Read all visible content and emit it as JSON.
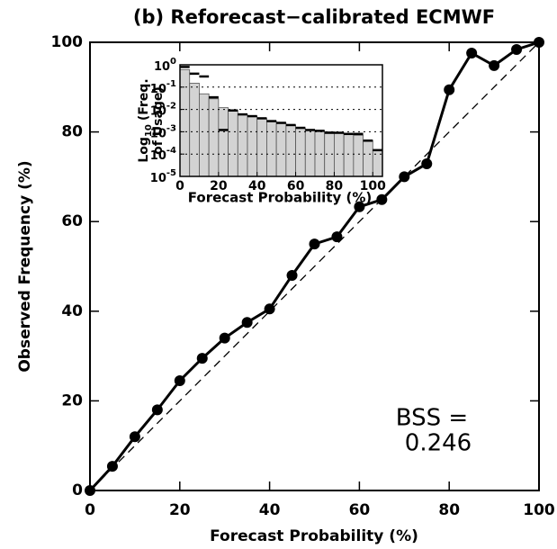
{
  "chart_data": [
    {
      "type": "line",
      "title": "(b) Reforecast−calibrated ECMWF",
      "xlabel": "Forecast Probability (%)",
      "ylabel": "Observed Frequency (%)",
      "x": [
        0,
        5,
        10,
        15,
        20,
        25,
        30,
        35,
        40,
        45,
        50,
        55,
        60,
        65,
        70,
        75,
        80,
        85,
        90,
        95,
        100
      ],
      "values": [
        0,
        5.4,
        12,
        18,
        24.5,
        29.5,
        34,
        37.5,
        40.5,
        48,
        55,
        56.6,
        63.3,
        64.9,
        70,
        72.9,
        89.4,
        97.6,
        94.8,
        98.4,
        100
      ],
      "color": "#000000",
      "xlim": [
        0,
        100
      ],
      "ylim": [
        0,
        100
      ],
      "xticks": [
        0,
        20,
        40,
        60,
        80,
        100
      ],
      "yticks": [
        0,
        20,
        40,
        60,
        80,
        100
      ],
      "annotations": [
        "BSS =",
        "0.246"
      ]
    },
    {
      "type": "histogram",
      "xlabel": "Forecast Probability (%)",
      "ylabel": {
        "base": "Log",
        "sub": "10",
        "rest": "(Freq.",
        "line2": "of Usage)"
      },
      "bins": [
        0,
        5,
        10,
        15,
        20,
        25,
        30,
        35,
        40,
        45,
        50,
        55,
        60,
        65,
        70,
        75,
        80,
        85,
        90,
        95,
        100,
        105
      ],
      "series": [
        {
          "color": "#d3d3d3",
          "values": [
            0.6,
            0.15,
            0.05,
            0.03,
            0.012,
            0.009,
            0.006,
            0.005,
            0.004,
            0.003,
            0.0025,
            0.002,
            0.0015,
            0.0012,
            0.0011,
            0.001,
            0.0009,
            0.0008,
            0.0007,
            0.0004,
            0.00015
          ]
        },
        {
          "color": "#000000",
          "values": [
            0.8,
            0.4,
            0.3,
            0.035,
            0.0012,
            0.009,
            0.006,
            0.005,
            0.004,
            0.003,
            0.0025,
            0.002,
            0.0015,
            0.0012,
            0.0011,
            0.0009,
            0.0009,
            0.0008,
            0.0008,
            0.0004,
            0.00015
          ]
        }
      ],
      "xlim": [
        0,
        105
      ],
      "ylim": [
        1e-05,
        1
      ],
      "log_y": true,
      "grid": true,
      "xticks": [
        0,
        20,
        40,
        60,
        80,
        100
      ],
      "yticks": [
        {
          "value": 1,
          "label": "10",
          "sup": "0"
        },
        {
          "value": 0.1,
          "label": "10",
          "sup": "-1"
        },
        {
          "value": 0.01,
          "label": "10",
          "sup": "-2"
        },
        {
          "value": 0.001,
          "label": "10",
          "sup": "-3"
        },
        {
          "value": 0.0001,
          "label": "10",
          "sup": "-4"
        },
        {
          "value": 1e-05,
          "label": "10",
          "sup": "-5"
        }
      ]
    }
  ]
}
